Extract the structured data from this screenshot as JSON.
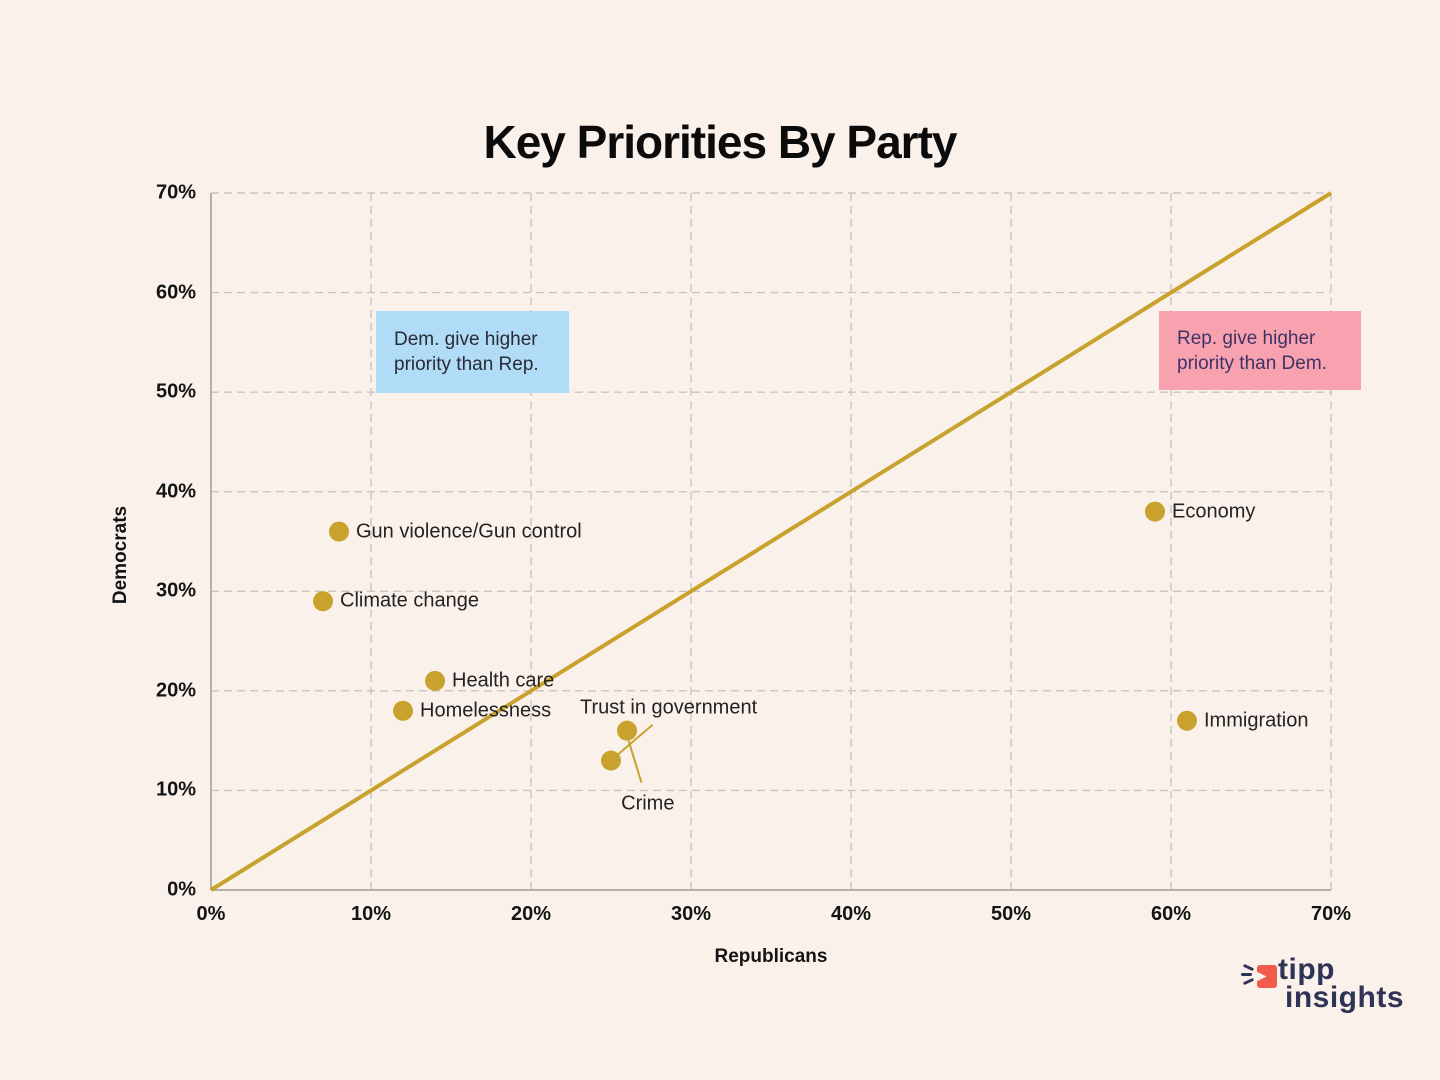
{
  "logo": {
    "word1": "tipp",
    "word2": "insights"
  },
  "colors": {
    "background": "#FBF1EB",
    "gold": "#C9A22E",
    "grid": "#C9C5C1",
    "axis": "#B2AFAC",
    "dem_box_bg": "#B0DCF8",
    "dem_box_text": "#2A2A35",
    "rep_box_bg": "#F9A2AF",
    "rep_box_text": "#3D3366",
    "logo_navy": "#2F3457",
    "logo_coral": "#F15B4C"
  },
  "chart_data": {
    "type": "scatter",
    "title": "Key Priorities By Party",
    "xlabel": "Republicans",
    "ylabel": "Democrats",
    "xlim": [
      0,
      70
    ],
    "ylim": [
      0,
      70
    ],
    "tick_labels": [
      "0%",
      "10%",
      "20%",
      "30%",
      "40%",
      "50%",
      "60%",
      "70%"
    ],
    "grid": "dashed",
    "legend": "none",
    "diagonal": {
      "from": [
        0,
        0
      ],
      "to": [
        70,
        70
      ]
    },
    "points": [
      {
        "label": "Gun violence/Gun control",
        "x": 8,
        "y": 36,
        "label_pos": "right"
      },
      {
        "label": "Climate change",
        "x": 7,
        "y": 29,
        "label_pos": "right"
      },
      {
        "label": "Health care",
        "x": 14,
        "y": 21,
        "label_pos": "right"
      },
      {
        "label": "Homelessness",
        "x": 12,
        "y": 18,
        "label_pos": "right"
      },
      {
        "label": "Crime",
        "x": 26,
        "y": 16,
        "label_pos": "custom",
        "label_x": 27.3,
        "label_y": 8.6
      },
      {
        "label": "Trust in government",
        "x": 25,
        "y": 13,
        "label_pos": "custom",
        "label_x": 28.6,
        "label_y": 18.3
      },
      {
        "label": "Economy",
        "x": 59,
        "y": 38,
        "label_pos": "right"
      },
      {
        "label": "Immigration",
        "x": 61,
        "y": 17,
        "label_pos": "right"
      }
    ],
    "leaders": [
      {
        "x1": 27.6,
        "y1": 16.6,
        "x2": 25.35,
        "y2": 13.5
      },
      {
        "x1": 26.1,
        "y1": 15.0,
        "x2": 26.9,
        "y2": 10.8
      }
    ],
    "annotations": [
      {
        "id": "dem-higher",
        "line1": "Dem. give higher",
        "line2": "priority than Rep."
      },
      {
        "id": "rep-higher",
        "line1": "Rep. give higher",
        "line2": "priority than Dem."
      }
    ]
  }
}
